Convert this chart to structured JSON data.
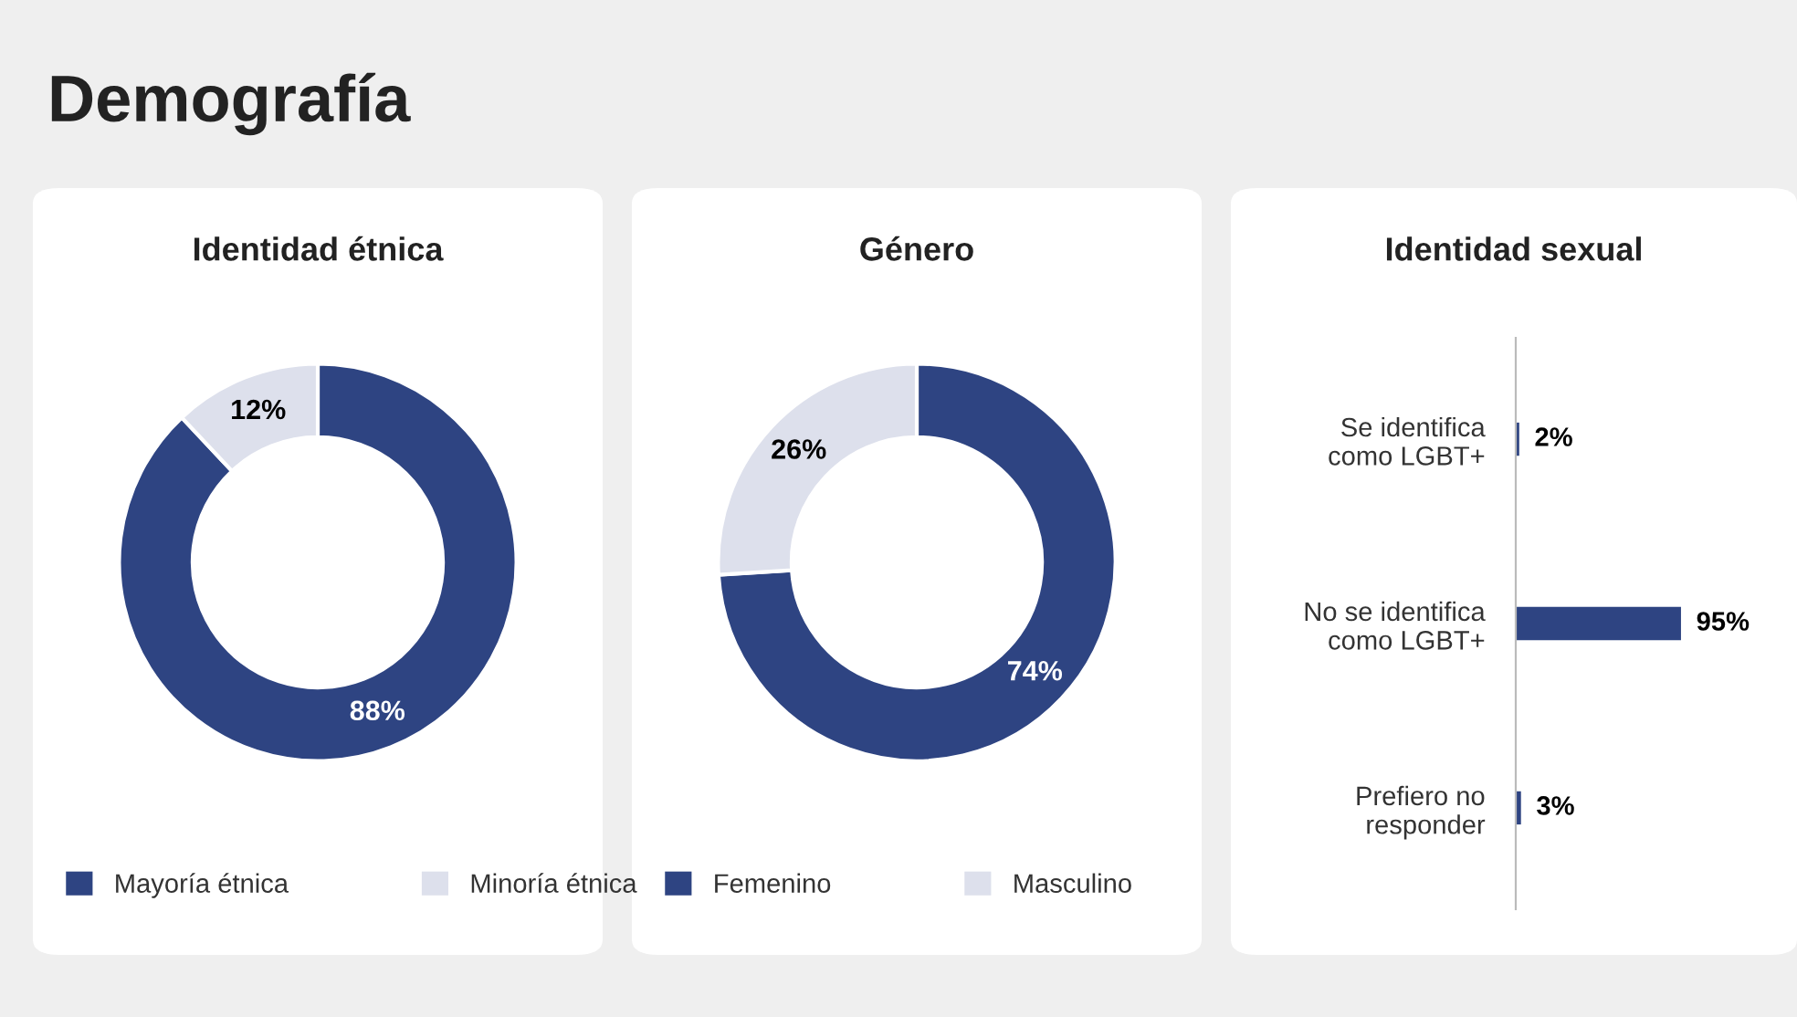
{
  "chart_data": [
    {
      "type": "donut",
      "title": "Identidad étnica",
      "annotations": [
        "Demografía"
      ],
      "categories": [
        "Mayoría étnica",
        "Minoría étnica"
      ],
      "values": [
        88,
        12
      ],
      "colors": [
        "#2e4482",
        "#dde0ec"
      ],
      "value_labels": [
        "88%",
        "12%"
      ],
      "legend": "bottom"
    },
    {
      "type": "donut",
      "title": "Género",
      "categories": [
        "Femenino",
        "Masculino"
      ],
      "values": [
        74,
        26
      ],
      "colors": [
        "#2e4482",
        "#dde0ec"
      ],
      "value_labels": [
        "74%",
        "26%"
      ],
      "legend": "bottom"
    },
    {
      "type": "bar",
      "orientation": "horizontal",
      "title": "Identidad sexual",
      "categories": [
        "Se identifica\ncomo LGBT+",
        "No se identifica\ncomo LGBT+",
        "Prefiero no\nresponder"
      ],
      "values": [
        2,
        95,
        3
      ],
      "color": "#2e4482",
      "value_labels": [
        "2%",
        "95%",
        "3%"
      ],
      "tick_labels": "y"
    }
  ]
}
